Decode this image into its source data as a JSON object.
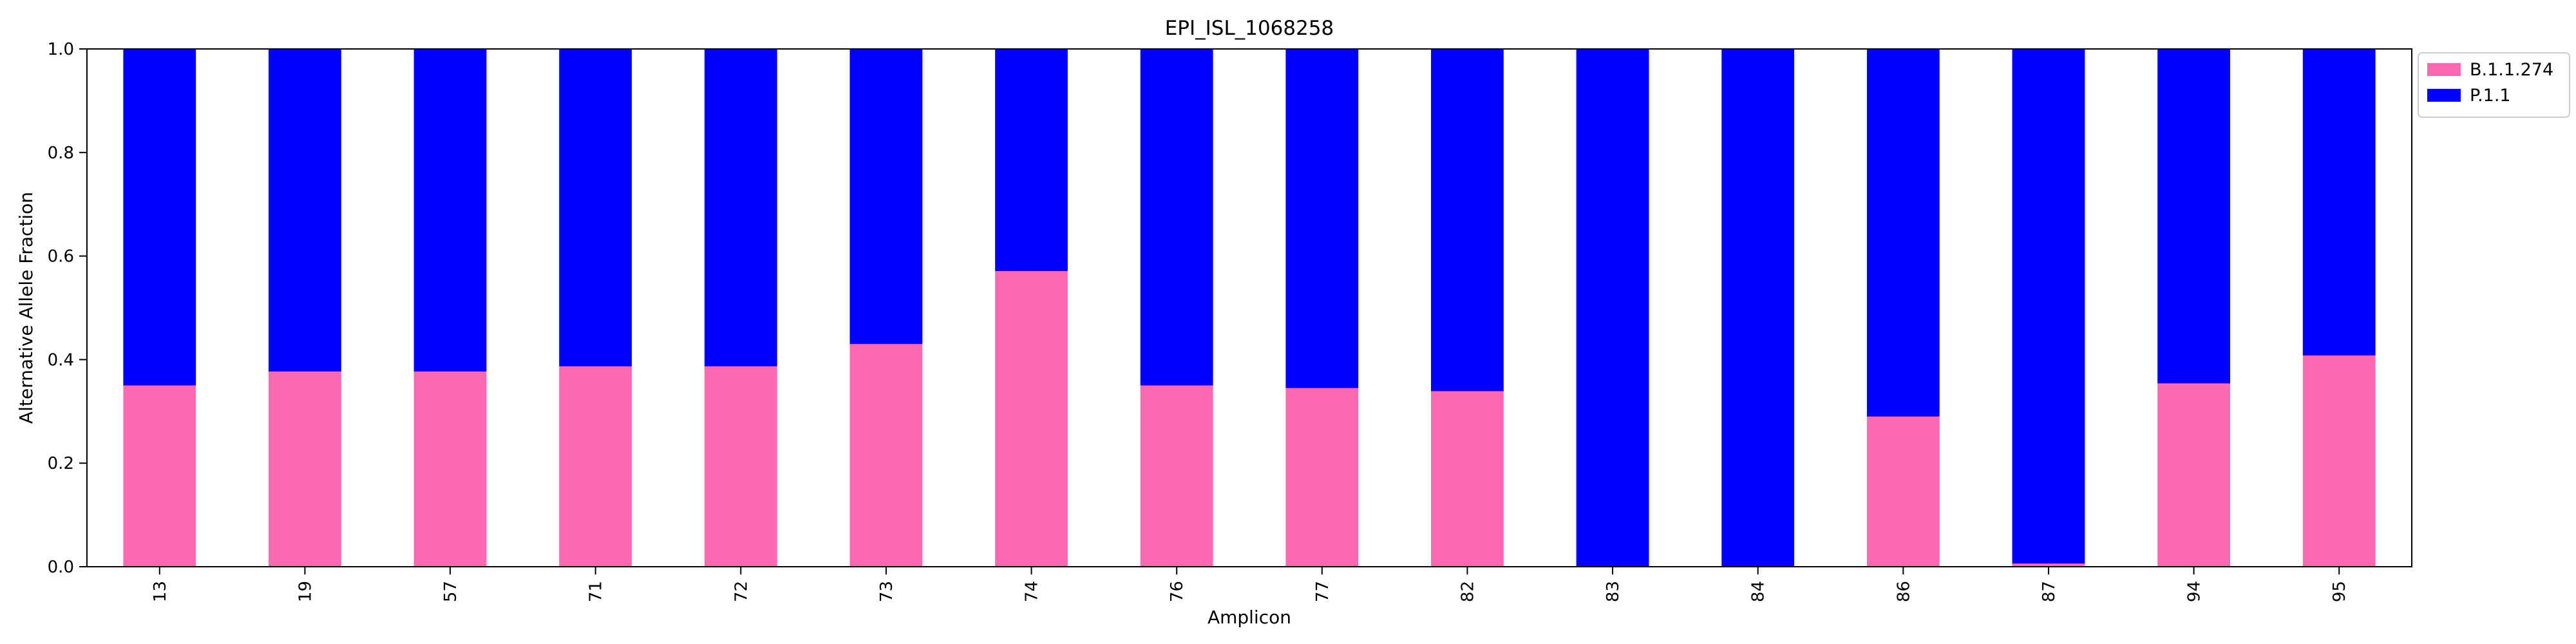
{
  "chart_data": {
    "type": "bar",
    "stacked": true,
    "title": "EPI_ISL_1068258",
    "xlabel": "Amplicon",
    "ylabel": "Alternative Allele Fraction",
    "ylim": [
      0,
      1
    ],
    "yticks": [
      "0.0",
      "0.2",
      "0.4",
      "0.6",
      "0.8",
      "1.0"
    ],
    "grid": false,
    "legend_position": "outside-top-right",
    "categories": [
      "13",
      "19",
      "57",
      "71",
      "72",
      "73",
      "74",
      "76",
      "77",
      "82",
      "83",
      "84",
      "86",
      "87",
      "94",
      "95"
    ],
    "series": [
      {
        "name": "B.1.1.274",
        "color": "#ff69b4",
        "values": [
          0.35,
          0.377,
          0.377,
          0.387,
          0.387,
          0.43,
          0.571,
          0.35,
          0.345,
          0.339,
          0.0,
          0.0,
          0.29,
          0.006,
          0.354,
          0.408
        ]
      },
      {
        "name": "P.1.1",
        "color": "#0000ff",
        "values": [
          0.65,
          0.623,
          0.623,
          0.613,
          0.613,
          0.57,
          0.429,
          0.65,
          0.655,
          0.661,
          1.0,
          1.0,
          0.71,
          0.994,
          0.646,
          0.592
        ]
      }
    ]
  }
}
